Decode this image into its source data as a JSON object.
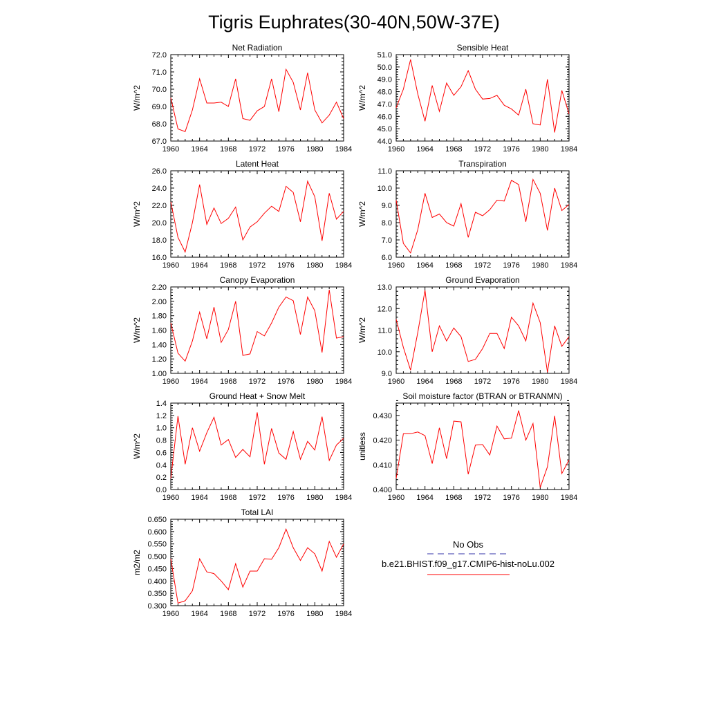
{
  "figure": {
    "title": "Tigris Euphrates(30-40N,50W-37E)"
  },
  "legend": {
    "obs_label": "No Obs",
    "model_label": "b.e21.BHIST.f09_g17.CMIP6-hist-noLu.002",
    "obs_color": "#3333aa",
    "model_color": "#ff0000"
  },
  "chart_data": [
    {
      "type": "line",
      "title": "Net Radiation",
      "ylabel": "W/m^2",
      "xlabel": "",
      "xlim": [
        1960,
        1984
      ],
      "ylim": [
        67.0,
        72.0
      ],
      "xticks": [
        1960,
        1964,
        1968,
        1972,
        1976,
        1980,
        1984
      ],
      "yticks": [
        "67.0",
        "68.0",
        "69.0",
        "70.0",
        "71.0",
        "72.0"
      ],
      "x": [
        1960,
        1961,
        1962,
        1963,
        1964,
        1965,
        1966,
        1967,
        1968,
        1969,
        1970,
        1971,
        1972,
        1973,
        1974,
        1975,
        1976,
        1977,
        1978,
        1979,
        1980,
        1981,
        1982,
        1983,
        1984
      ],
      "series": [
        {
          "color": "#ff0000",
          "values": [
            69.5,
            67.7,
            67.55,
            68.8,
            70.6,
            69.2,
            69.2,
            69.25,
            69.0,
            70.6,
            68.3,
            68.2,
            68.75,
            69.0,
            70.6,
            68.7,
            71.15,
            70.4,
            68.8,
            70.95,
            68.8,
            68.05,
            68.5,
            69.25,
            68.3
          ]
        }
      ]
    },
    {
      "type": "line",
      "title": "Sensible Heat",
      "ylabel": "W/m^2",
      "xlabel": "",
      "xlim": [
        1960,
        1984
      ],
      "ylim": [
        44.0,
        51.0
      ],
      "xticks": [
        1960,
        1964,
        1968,
        1972,
        1976,
        1980,
        1984
      ],
      "yticks": [
        "44.0",
        "45.0",
        "46.0",
        "47.0",
        "48.0",
        "49.0",
        "50.0",
        "51.0"
      ],
      "x": [
        1960,
        1961,
        1962,
        1963,
        1964,
        1965,
        1966,
        1967,
        1968,
        1969,
        1970,
        1971,
        1972,
        1973,
        1974,
        1975,
        1976,
        1977,
        1978,
        1979,
        1980,
        1981,
        1982,
        1983,
        1984
      ],
      "series": [
        {
          "color": "#ff0000",
          "values": [
            46.7,
            48.2,
            50.6,
            47.8,
            45.6,
            48.5,
            46.4,
            48.7,
            47.7,
            48.4,
            49.7,
            48.2,
            47.4,
            47.45,
            47.7,
            46.9,
            46.6,
            46.1,
            48.2,
            45.4,
            45.3,
            49.0,
            44.7,
            48.1,
            46.2
          ]
        }
      ]
    },
    {
      "type": "line",
      "title": "Latent Heat",
      "ylabel": "W/m^2",
      "xlabel": "",
      "xlim": [
        1960,
        1984
      ],
      "ylim": [
        16.0,
        26.0
      ],
      "xticks": [
        1960,
        1964,
        1968,
        1972,
        1976,
        1980,
        1984
      ],
      "yticks": [
        "16.0",
        "18.0",
        "20.0",
        "22.0",
        "24.0",
        "26.0"
      ],
      "x": [
        1960,
        1961,
        1962,
        1963,
        1964,
        1965,
        1966,
        1967,
        1968,
        1969,
        1970,
        1971,
        1972,
        1973,
        1974,
        1975,
        1976,
        1977,
        1978,
        1979,
        1980,
        1981,
        1982,
        1983,
        1984
      ],
      "series": [
        {
          "color": "#ff0000",
          "values": [
            22.4,
            18.3,
            16.6,
            20.0,
            24.4,
            19.8,
            21.7,
            19.9,
            20.5,
            21.8,
            18.0,
            19.5,
            20.1,
            21.1,
            21.9,
            21.3,
            24.2,
            23.5,
            20.1,
            24.8,
            23.0,
            17.9,
            23.4,
            20.4,
            21.3
          ]
        }
      ]
    },
    {
      "type": "line",
      "title": "Transpiration",
      "ylabel": "W/m^2",
      "xlabel": "",
      "xlim": [
        1960,
        1984
      ],
      "ylim": [
        6.0,
        11.0
      ],
      "xticks": [
        1960,
        1964,
        1968,
        1972,
        1976,
        1980,
        1984
      ],
      "yticks": [
        "6.0",
        "7.0",
        "8.0",
        "9.0",
        "10.0",
        "11.0"
      ],
      "x": [
        1960,
        1961,
        1962,
        1963,
        1964,
        1965,
        1966,
        1967,
        1968,
        1969,
        1970,
        1971,
        1972,
        1973,
        1974,
        1975,
        1976,
        1977,
        1978,
        1979,
        1980,
        1981,
        1982,
        1983,
        1984
      ],
      "series": [
        {
          "color": "#ff0000",
          "values": [
            9.3,
            6.8,
            6.25,
            7.6,
            9.7,
            8.3,
            8.5,
            8.0,
            7.8,
            9.1,
            7.15,
            8.6,
            8.4,
            8.75,
            9.3,
            9.25,
            10.45,
            10.2,
            8.05,
            10.5,
            9.7,
            7.55,
            10.0,
            8.7,
            9.05
          ]
        }
      ]
    },
    {
      "type": "line",
      "title": "Canopy Evaporation",
      "ylabel": "W/m^2",
      "xlabel": "",
      "xlim": [
        1960,
        1984
      ],
      "ylim": [
        1.0,
        2.2
      ],
      "xticks": [
        1960,
        1964,
        1968,
        1972,
        1976,
        1980,
        1984
      ],
      "yticks": [
        "1.00",
        "1.20",
        "1.40",
        "1.60",
        "1.80",
        "2.00",
        "2.20"
      ],
      "x": [
        1960,
        1961,
        1962,
        1963,
        1964,
        1965,
        1966,
        1967,
        1968,
        1969,
        1970,
        1971,
        1972,
        1973,
        1974,
        1975,
        1976,
        1977,
        1978,
        1979,
        1980,
        1981,
        1982,
        1983,
        1984
      ],
      "series": [
        {
          "color": "#ff0000",
          "values": [
            1.7,
            1.28,
            1.17,
            1.45,
            1.85,
            1.48,
            1.92,
            1.43,
            1.61,
            2.0,
            1.25,
            1.27,
            1.58,
            1.52,
            1.7,
            1.92,
            2.06,
            2.01,
            1.54,
            2.06,
            1.87,
            1.29,
            2.16,
            1.49,
            1.51
          ]
        }
      ]
    },
    {
      "type": "line",
      "title": "Ground Evaporation",
      "ylabel": "W/m^2",
      "xlabel": "",
      "xlim": [
        1960,
        1984
      ],
      "ylim": [
        9.0,
        13.0
      ],
      "xticks": [
        1960,
        1964,
        1968,
        1972,
        1976,
        1980,
        1984
      ],
      "yticks": [
        "9.0",
        "10.0",
        "11.0",
        "12.0",
        "13.0"
      ],
      "x": [
        1960,
        1961,
        1962,
        1963,
        1964,
        1965,
        1966,
        1967,
        1968,
        1969,
        1970,
        1971,
        1972,
        1973,
        1974,
        1975,
        1976,
        1977,
        1978,
        1979,
        1980,
        1981,
        1982,
        1983,
        1984
      ],
      "series": [
        {
          "color": "#ff0000",
          "values": [
            11.5,
            10.2,
            9.15,
            10.9,
            12.85,
            10.0,
            11.2,
            10.5,
            11.1,
            10.7,
            9.55,
            9.65,
            10.15,
            10.85,
            10.85,
            10.15,
            11.6,
            11.2,
            10.5,
            12.25,
            11.35,
            9.05,
            11.2,
            10.25,
            10.7
          ]
        }
      ]
    },
    {
      "type": "line",
      "title": "Ground Heat + Snow Melt",
      "ylabel": "W/m^2",
      "xlabel": "",
      "xlim": [
        1960,
        1984
      ],
      "ylim": [
        0.0,
        1.4
      ],
      "xticks": [
        1960,
        1964,
        1968,
        1972,
        1976,
        1980,
        1984
      ],
      "yticks": [
        "0.0",
        "0.2",
        "0.4",
        "0.6",
        "0.8",
        "1.0",
        "1.2",
        "1.4"
      ],
      "x": [
        1960,
        1961,
        1962,
        1963,
        1964,
        1965,
        1966,
        1967,
        1968,
        1969,
        1970,
        1971,
        1972,
        1973,
        1974,
        1975,
        1976,
        1977,
        1978,
        1979,
        1980,
        1981,
        1982,
        1983,
        1984
      ],
      "series": [
        {
          "color": "#ff0000",
          "values": [
            0.18,
            1.19,
            0.41,
            1.0,
            0.62,
            0.92,
            1.17,
            0.72,
            0.81,
            0.52,
            0.65,
            0.53,
            1.25,
            0.41,
            0.99,
            0.59,
            0.49,
            0.94,
            0.49,
            0.78,
            0.64,
            1.18,
            0.47,
            0.72,
            0.83
          ]
        }
      ]
    },
    {
      "type": "line",
      "title": "Soil moisture factor (BTRAN or BTRANMN)",
      "ylabel": "unitless",
      "xlabel": "",
      "xlim": [
        1960,
        1984
      ],
      "ylim": [
        0.4,
        0.435
      ],
      "xticks": [
        1960,
        1964,
        1968,
        1972,
        1976,
        1980,
        1984
      ],
      "yticks": [
        "0.400",
        "0.410",
        "0.420",
        "0.430"
      ],
      "x": [
        1960,
        1961,
        1962,
        1963,
        1964,
        1965,
        1966,
        1967,
        1968,
        1969,
        1970,
        1971,
        1972,
        1973,
        1974,
        1975,
        1976,
        1977,
        1978,
        1979,
        1980,
        1981,
        1982,
        1983,
        1984
      ],
      "series": [
        {
          "color": "#ff0000",
          "values": [
            0.4045,
            0.4226,
            0.4226,
            0.4233,
            0.4218,
            0.4105,
            0.425,
            0.4125,
            0.4277,
            0.4274,
            0.4062,
            0.418,
            0.4182,
            0.414,
            0.4257,
            0.4205,
            0.4208,
            0.432,
            0.42,
            0.4267,
            0.4008,
            0.4092,
            0.4298,
            0.4065,
            0.412
          ]
        }
      ]
    },
    {
      "type": "line",
      "title": "Total LAI",
      "ylabel": "m2/m2",
      "xlabel": "",
      "xlim": [
        1960,
        1984
      ],
      "ylim": [
        0.3,
        0.65
      ],
      "xticks": [
        1960,
        1964,
        1968,
        1972,
        1976,
        1980,
        1984
      ],
      "yticks": [
        "0.300",
        "0.350",
        "0.400",
        "0.450",
        "0.500",
        "0.550",
        "0.600",
        "0.650"
      ],
      "x": [
        1960,
        1961,
        1962,
        1963,
        1964,
        1965,
        1966,
        1967,
        1968,
        1969,
        1970,
        1971,
        1972,
        1973,
        1974,
        1975,
        1976,
        1977,
        1978,
        1979,
        1980,
        1981,
        1982,
        1983,
        1984
      ],
      "series": [
        {
          "color": "#ff0000",
          "values": [
            0.49,
            0.31,
            0.32,
            0.36,
            0.49,
            0.437,
            0.43,
            0.4,
            0.365,
            0.47,
            0.375,
            0.44,
            0.44,
            0.49,
            0.488,
            0.535,
            0.61,
            0.535,
            0.483,
            0.535,
            0.51,
            0.44,
            0.56,
            0.496,
            0.55
          ]
        }
      ]
    }
  ]
}
